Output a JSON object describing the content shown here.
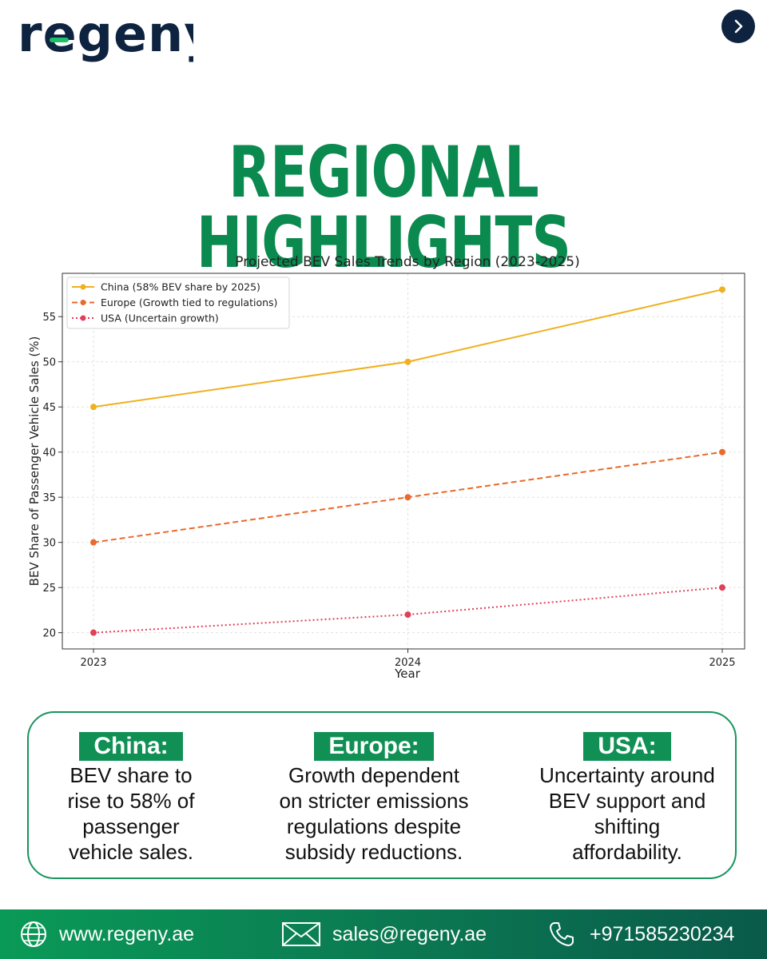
{
  "brand": {
    "logo_text": "regeny"
  },
  "nav": {
    "next_icon": "chevron-right-icon"
  },
  "headline": "REGIONAL HIGHLIGHTS",
  "chart_data": {
    "type": "line",
    "title": "Projected BEV Sales Trends by Region (2023-2025)",
    "xlabel": "Year",
    "ylabel": "BEV Share of Passenger Vehicle Sales (%)",
    "x": [
      2023,
      2024,
      2025
    ],
    "x_tick_labels": [
      "2023",
      "2024",
      "2025"
    ],
    "y_ticks": [
      20,
      25,
      30,
      35,
      40,
      45,
      50,
      55
    ],
    "ylim": [
      18.2,
      59.8
    ],
    "grid": true,
    "legend_position": "top-left",
    "series": [
      {
        "name": "China (58% BEV share by 2025)",
        "values": [
          45,
          50,
          58
        ],
        "color": "#F0B020",
        "style": "solid"
      },
      {
        "name": "Europe (Growth tied to regulations)",
        "values": [
          30,
          35,
          40
        ],
        "color": "#E86A2C",
        "style": "dashed"
      },
      {
        "name": "USA (Uncertain growth)",
        "values": [
          20,
          22,
          25
        ],
        "color": "#E0405A",
        "style": "dotted"
      }
    ]
  },
  "highlights": [
    {
      "label": "China:",
      "desc": [
        "BEV share to",
        "rise to 58% of",
        "passenger",
        "vehicle sales."
      ]
    },
    {
      "label": "Europe:",
      "desc": [
        "Growth dependent",
        "on stricter emissions",
        "regulations despite",
        "subsidy reductions."
      ]
    },
    {
      "label": "USA:",
      "desc": [
        "Uncertainty around",
        "BEV support and",
        "shifting",
        "affordability."
      ]
    }
  ],
  "footer": {
    "website": "www.regeny.ae",
    "email": "sales@regeny.ae",
    "phone": "+971585230234"
  },
  "colors": {
    "accent_green": "#0a8a4f",
    "navy": "#0d2340"
  }
}
